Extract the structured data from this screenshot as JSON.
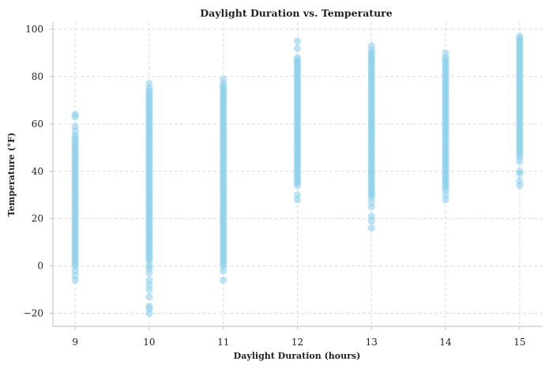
{
  "chart_data": {
    "type": "scatter",
    "title": "Daylight Duration vs. Temperature",
    "xlabel": "Daylight Duration (hours)",
    "ylabel": "Temperature (°F)",
    "xlim": [
      8.7,
      15.3
    ],
    "ylim": [
      -25.5,
      103
    ],
    "x_ticks": [
      9,
      10,
      11,
      12,
      13,
      14,
      15
    ],
    "y_ticks": [
      -20,
      0,
      20,
      40,
      60,
      80,
      100
    ],
    "grid": true,
    "marker_color": "#87CEEB",
    "series": [
      {
        "points": [
          {
            "x": 9,
            "y": [
              -6,
              -4,
              -2,
              0,
              1,
              2,
              3,
              4,
              5,
              6,
              7,
              8,
              9,
              10,
              11,
              12,
              13,
              14,
              15,
              16,
              17,
              18,
              19,
              20,
              21,
              22,
              23,
              24,
              25,
              26,
              27,
              28,
              29,
              30,
              31,
              32,
              33,
              34,
              35,
              36,
              37,
              38,
              39,
              40,
              41,
              42,
              43,
              44,
              45,
              46,
              47,
              48,
              49,
              50,
              51,
              52,
              53,
              54,
              55,
              57,
              59,
              63,
              64
            ]
          },
          {
            "x": 10,
            "y": [
              -20,
              -18,
              -17,
              -13,
              -10,
              -8,
              -6,
              -3,
              -1,
              0,
              2,
              3,
              4,
              5,
              6,
              7,
              8,
              9,
              10,
              11,
              12,
              13,
              14,
              15,
              16,
              17,
              18,
              19,
              20,
              21,
              22,
              23,
              24,
              25,
              26,
              27,
              28,
              29,
              30,
              31,
              32,
              33,
              34,
              35,
              36,
              37,
              38,
              39,
              40,
              41,
              42,
              43,
              44,
              45,
              46,
              47,
              48,
              49,
              50,
              51,
              52,
              53,
              54,
              55,
              56,
              57,
              58,
              59,
              60,
              61,
              62,
              63,
              64,
              65,
              66,
              67,
              68,
              69,
              70,
              71,
              72,
              73,
              74,
              75,
              77
            ]
          },
          {
            "x": 11,
            "y": [
              -6,
              -2,
              0,
              1,
              2,
              3,
              4,
              5,
              6,
              7,
              8,
              9,
              10,
              11,
              12,
              13,
              14,
              15,
              16,
              17,
              18,
              19,
              20,
              21,
              22,
              23,
              24,
              25,
              26,
              27,
              28,
              29,
              30,
              31,
              32,
              33,
              34,
              35,
              36,
              37,
              38,
              39,
              40,
              41,
              42,
              43,
              44,
              45,
              46,
              47,
              48,
              49,
              50,
              51,
              52,
              53,
              54,
              55,
              56,
              57,
              58,
              59,
              60,
              61,
              62,
              63,
              64,
              65,
              66,
              67,
              68,
              69,
              70,
              71,
              72,
              73,
              74,
              75,
              76,
              77,
              79
            ]
          },
          {
            "x": 12,
            "y": [
              28,
              30,
              34,
              35,
              36,
              37,
              38,
              39,
              40,
              41,
              42,
              43,
              44,
              45,
              46,
              47,
              48,
              49,
              50,
              51,
              52,
              53,
              54,
              55,
              56,
              57,
              58,
              59,
              60,
              61,
              62,
              63,
              64,
              65,
              66,
              67,
              68,
              69,
              70,
              71,
              72,
              73,
              74,
              75,
              76,
              77,
              78,
              79,
              80,
              81,
              82,
              83,
              84,
              85,
              86,
              87,
              88,
              92,
              95
            ]
          },
          {
            "x": 13,
            "y": [
              16,
              19,
              21,
              25,
              27,
              29,
              30,
              31,
              32,
              33,
              34,
              35,
              36,
              37,
              38,
              39,
              40,
              41,
              42,
              43,
              44,
              45,
              46,
              47,
              48,
              49,
              50,
              51,
              52,
              53,
              54,
              55,
              56,
              57,
              58,
              59,
              60,
              61,
              62,
              63,
              64,
              65,
              66,
              67,
              68,
              69,
              70,
              71,
              72,
              73,
              74,
              75,
              76,
              77,
              78,
              79,
              80,
              81,
              82,
              83,
              84,
              85,
              86,
              87,
              88,
              89,
              90,
              91,
              93
            ]
          },
          {
            "x": 14,
            "y": [
              28,
              30,
              32,
              33,
              34,
              35,
              36,
              37,
              38,
              39,
              40,
              41,
              42,
              43,
              44,
              45,
              46,
              47,
              48,
              49,
              50,
              51,
              52,
              53,
              54,
              55,
              56,
              57,
              58,
              59,
              60,
              61,
              62,
              63,
              64,
              65,
              66,
              67,
              68,
              69,
              70,
              71,
              72,
              73,
              74,
              75,
              76,
              77,
              78,
              79,
              80,
              81,
              82,
              83,
              84,
              85,
              86,
              87,
              88,
              90
            ]
          },
          {
            "x": 15,
            "y": [
              34,
              36,
              39,
              40,
              44,
              46,
              47,
              48,
              49,
              50,
              51,
              52,
              53,
              54,
              55,
              56,
              57,
              58,
              59,
              60,
              61,
              62,
              63,
              64,
              65,
              66,
              67,
              68,
              69,
              70,
              71,
              72,
              73,
              74,
              75,
              76,
              77,
              78,
              79,
              80,
              81,
              82,
              83,
              84,
              85,
              86,
              87,
              88,
              89,
              90,
              91,
              92,
              93,
              94,
              95,
              96,
              97
            ]
          }
        ]
      }
    ]
  }
}
